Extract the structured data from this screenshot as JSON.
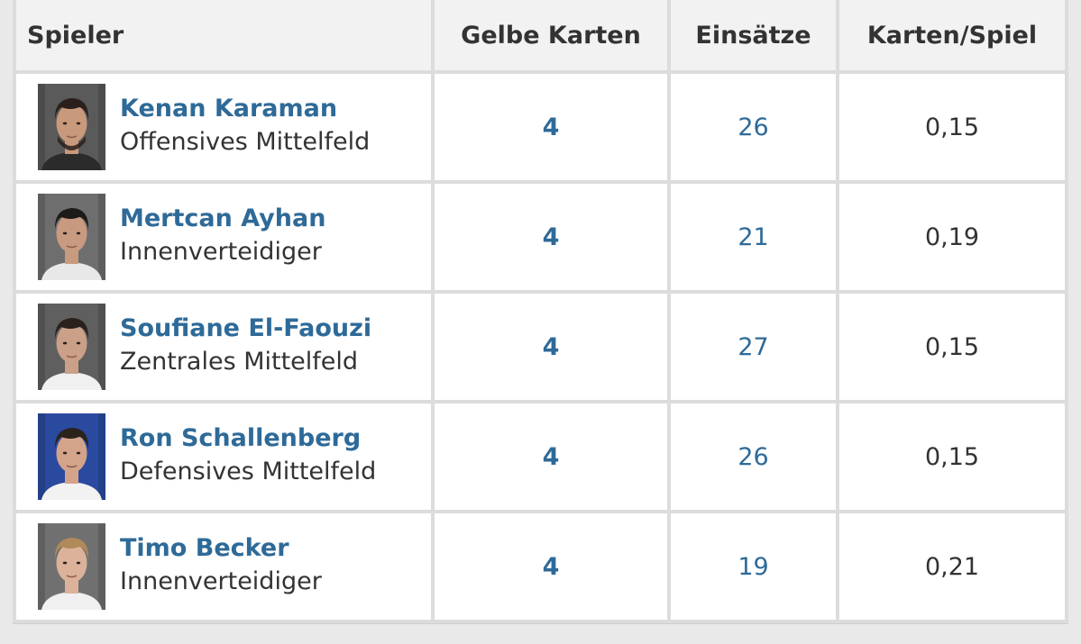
{
  "table": {
    "headers": {
      "player": "Spieler",
      "yellow_cards": "Gelbe Karten",
      "appearances": "Einsätze",
      "cards_per_game": "Karten/Spiel"
    },
    "rows": [
      {
        "name": "Kenan Karaman",
        "position": "Offensives Mittelfeld",
        "yellow_cards": "4",
        "appearances": "26",
        "cards_per_game": "0,15",
        "photo": {
          "bg": "#5a5a5a",
          "skin": "#c9997c",
          "hair": "#2a1f1a",
          "shirt": "#2b2b2b",
          "beard": true
        }
      },
      {
        "name": "Mertcan Ayhan",
        "position": "Innenverteidiger",
        "yellow_cards": "4",
        "appearances": "21",
        "cards_per_game": "0,19",
        "photo": {
          "bg": "#6e6e6e",
          "skin": "#c89a80",
          "hair": "#1e1a18",
          "shirt": "#e8e8e8",
          "beard": false
        }
      },
      {
        "name": "Soufiane El-Faouzi",
        "position": "Zentrales Mittelfeld",
        "yellow_cards": "4",
        "appearances": "27",
        "cards_per_game": "0,15",
        "photo": {
          "bg": "#5f5f5f",
          "skin": "#caa088",
          "hair": "#2a211c",
          "shirt": "#f0f0f0",
          "beard": false
        }
      },
      {
        "name": "Ron Schallenberg",
        "position": "Defensives Mittelfeld",
        "yellow_cards": "4",
        "appearances": "26",
        "cards_per_game": "0,15",
        "photo": {
          "bg": "#2a4aa0",
          "skin": "#d4a48a",
          "hair": "#2b221c",
          "shirt": "#f2f2f2",
          "beard": false
        }
      },
      {
        "name": "Timo Becker",
        "position": "Innenverteidiger",
        "yellow_cards": "4",
        "appearances": "19",
        "cards_per_game": "0,21",
        "photo": {
          "bg": "#707070",
          "skin": "#dcb29a",
          "hair": "#b08a5a",
          "shirt": "#f0f0f0",
          "beard": false
        }
      }
    ]
  }
}
